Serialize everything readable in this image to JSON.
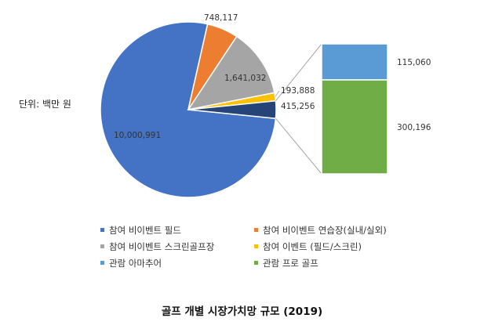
{
  "chart_data": {
    "type": "pie",
    "title": "골프 개별 시장가치망 규모 (2019)",
    "unit_label": "단위: 백만 원",
    "slices": [
      {
        "name": "참여 비이벤트 필드",
        "value": 10000991,
        "label": "10,000,991",
        "color": "#4472C4"
      },
      {
        "name": "참여 비이벤트 연습장(실내/실외)",
        "value": 748117,
        "label": "748,117",
        "color": "#ED7D31"
      },
      {
        "name": "참여 비이벤트 스크린골프장",
        "value": 1641032,
        "label": "1,641,032",
        "color": "#A5A5A5"
      },
      {
        "name": "참여 이벤트 (필드/스크린)",
        "value": 193888,
        "label": "193,888",
        "color": "#FFC000"
      },
      {
        "name": "관람",
        "value": 415256,
        "label": "415,256",
        "color": "#264478"
      }
    ],
    "breakout": {
      "of": "관람",
      "items": [
        {
          "name": "관람 아마추어",
          "value": 115060,
          "label": "115,060",
          "color": "#5B9BD5"
        },
        {
          "name": "관람 프로 골프",
          "value": 300196,
          "label": "300,196",
          "color": "#70AD47"
        }
      ]
    },
    "legend": [
      {
        "label": "참여 비이벤트 필드",
        "color": "#4472C4"
      },
      {
        "label": "참여 비이벤트 연습장(실내/실외)",
        "color": "#ED7D31"
      },
      {
        "label": "참여 비이벤트 스크린골프장",
        "color": "#A5A5A5"
      },
      {
        "label": "참여 이벤트 (필드/스크린)",
        "color": "#FFC000"
      },
      {
        "label": "관람 아마추어",
        "color": "#5B9BD5"
      },
      {
        "label": "관람 프로 골프",
        "color": "#70AD47"
      }
    ],
    "legend_position": "bottom"
  }
}
